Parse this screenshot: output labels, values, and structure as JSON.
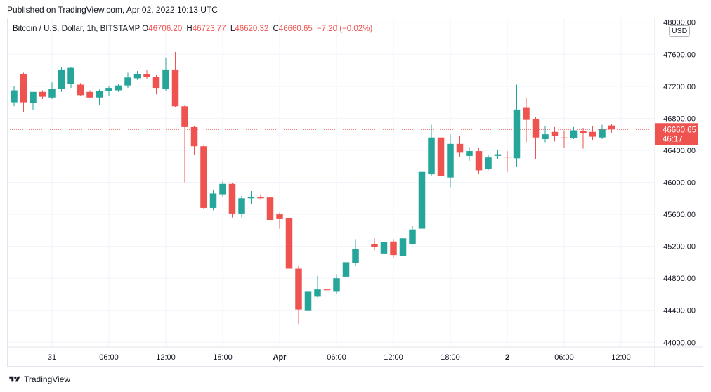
{
  "header": {
    "published": "Published on TradingView.com, Apr 02, 2022 10:13 UTC"
  },
  "legend": {
    "symbol": "Bitcoin / U.S. Dollar, 1h, BITSTAMP",
    "o_label": "O",
    "o_value": "46706.20",
    "h_label": "H",
    "h_value": "46723.77",
    "l_label": "L",
    "l_value": "46620.32",
    "c_label": "C",
    "c_value": "46660.65",
    "change": "−7.20 (−0.02%)"
  },
  "currency_badge": "USD",
  "footer": {
    "brand": "TradingView",
    "logo_icon": "tradingview-logo-icon"
  },
  "colors": {
    "up": "#26a69a",
    "down": "#ef5350",
    "grid": "#f0f3fa",
    "axis_text": "#131722"
  },
  "chart_data": {
    "type": "candlestick",
    "ylim": [
      43950,
      48050
    ],
    "yticks": [
      44000,
      44400,
      44800,
      45200,
      45600,
      46000,
      46400,
      46800,
      47200,
      47600,
      48000
    ],
    "ytick_labels": [
      "44000.00",
      "44400.00",
      "44800.00",
      "45200.00",
      "45600.00",
      "46000.00",
      "46400.00",
      "46800.00",
      "47200.00",
      "47600.00",
      "48000.00"
    ],
    "xticks": [
      {
        "label": "31",
        "index": 4,
        "bold": false
      },
      {
        "label": "06:00",
        "index": 10,
        "bold": false
      },
      {
        "label": "12:00",
        "index": 16,
        "bold": false
      },
      {
        "label": "18:00",
        "index": 22,
        "bold": false
      },
      {
        "label": "Apr",
        "index": 28,
        "bold": true
      },
      {
        "label": "06:00",
        "index": 34,
        "bold": false
      },
      {
        "label": "12:00",
        "index": 40,
        "bold": false
      },
      {
        "label": "18:00",
        "index": 46,
        "bold": false
      },
      {
        "label": "2",
        "index": 52,
        "bold": true
      },
      {
        "label": "06:00",
        "index": 58,
        "bold": false
      },
      {
        "label": "12:00",
        "index": 64,
        "bold": false
      }
    ],
    "last_price": {
      "value": 46660.65,
      "label": "46660.65",
      "countdown": "46:17"
    },
    "candles": [
      {
        "o": 47000,
        "h": 47200,
        "l": 46950,
        "c": 47150
      },
      {
        "o": 47350,
        "h": 47370,
        "l": 46880,
        "c": 47000
      },
      {
        "o": 46990,
        "h": 47120,
        "l": 46900,
        "c": 47130
      },
      {
        "o": 47130,
        "h": 47150,
        "l": 47040,
        "c": 47070
      },
      {
        "o": 47060,
        "h": 47250,
        "l": 47040,
        "c": 47170
      },
      {
        "o": 47170,
        "h": 47440,
        "l": 47130,
        "c": 47410
      },
      {
        "o": 47230,
        "h": 47440,
        "l": 47180,
        "c": 47430
      },
      {
        "o": 47220,
        "h": 47240,
        "l": 47080,
        "c": 47090
      },
      {
        "o": 47130,
        "h": 47150,
        "l": 47050,
        "c": 47060
      },
      {
        "o": 47060,
        "h": 47160,
        "l": 46960,
        "c": 47140
      },
      {
        "o": 47140,
        "h": 47200,
        "l": 47080,
        "c": 47180
      },
      {
        "o": 47150,
        "h": 47230,
        "l": 47130,
        "c": 47210
      },
      {
        "o": 47210,
        "h": 47370,
        "l": 47180,
        "c": 47310
      },
      {
        "o": 47300,
        "h": 47390,
        "l": 47280,
        "c": 47350
      },
      {
        "o": 47350,
        "h": 47400,
        "l": 47290,
        "c": 47320
      },
      {
        "o": 47320,
        "h": 47340,
        "l": 47100,
        "c": 47180
      },
      {
        "o": 47170,
        "h": 47560,
        "l": 47140,
        "c": 47410
      },
      {
        "o": 47410,
        "h": 47630,
        "l": 46940,
        "c": 46950
      },
      {
        "o": 46950,
        "h": 46960,
        "l": 46000,
        "c": 46690
      },
      {
        "o": 46690,
        "h": 46700,
        "l": 46340,
        "c": 46450
      },
      {
        "o": 46450,
        "h": 46460,
        "l": 45670,
        "c": 45680
      },
      {
        "o": 45680,
        "h": 45900,
        "l": 45650,
        "c": 45860
      },
      {
        "o": 45850,
        "h": 46010,
        "l": 45820,
        "c": 45980
      },
      {
        "o": 45980,
        "h": 45990,
        "l": 45560,
        "c": 45610
      },
      {
        "o": 45610,
        "h": 45830,
        "l": 45560,
        "c": 45800
      },
      {
        "o": 45800,
        "h": 45890,
        "l": 45730,
        "c": 45820
      },
      {
        "o": 45820,
        "h": 45850,
        "l": 45790,
        "c": 45800
      },
      {
        "o": 45810,
        "h": 45840,
        "l": 45240,
        "c": 45530
      },
      {
        "o": 45600,
        "h": 45620,
        "l": 45420,
        "c": 45540
      },
      {
        "o": 45550,
        "h": 45570,
        "l": 44930,
        "c": 44920
      },
      {
        "o": 44920,
        "h": 44960,
        "l": 44230,
        "c": 44410
      },
      {
        "o": 44400,
        "h": 44650,
        "l": 44280,
        "c": 44640
      },
      {
        "o": 44570,
        "h": 44830,
        "l": 44560,
        "c": 44660
      },
      {
        "o": 44660,
        "h": 44730,
        "l": 44600,
        "c": 44650
      },
      {
        "o": 44640,
        "h": 44850,
        "l": 44600,
        "c": 44800
      },
      {
        "o": 44820,
        "h": 44990,
        "l": 44800,
        "c": 45000
      },
      {
        "o": 44990,
        "h": 45290,
        "l": 44950,
        "c": 45170
      },
      {
        "o": 45170,
        "h": 45300,
        "l": 45080,
        "c": 45170
      },
      {
        "o": 45230,
        "h": 45300,
        "l": 45150,
        "c": 45190
      },
      {
        "o": 45110,
        "h": 45290,
        "l": 45090,
        "c": 45250
      },
      {
        "o": 45260,
        "h": 45290,
        "l": 45060,
        "c": 45090
      },
      {
        "o": 45080,
        "h": 45330,
        "l": 44730,
        "c": 45300
      },
      {
        "o": 45230,
        "h": 45460,
        "l": 45220,
        "c": 45410
      },
      {
        "o": 45420,
        "h": 46180,
        "l": 45400,
        "c": 46130
      },
      {
        "o": 46100,
        "h": 46720,
        "l": 46080,
        "c": 46560
      },
      {
        "o": 46560,
        "h": 46620,
        "l": 46060,
        "c": 46080
      },
      {
        "o": 46060,
        "h": 46600,
        "l": 45940,
        "c": 46480
      },
      {
        "o": 46480,
        "h": 46580,
        "l": 46320,
        "c": 46370
      },
      {
        "o": 46330,
        "h": 46440,
        "l": 46270,
        "c": 46390
      },
      {
        "o": 46390,
        "h": 46430,
        "l": 46100,
        "c": 46150
      },
      {
        "o": 46170,
        "h": 46340,
        "l": 46150,
        "c": 46310
      },
      {
        "o": 46330,
        "h": 46400,
        "l": 46290,
        "c": 46350
      },
      {
        "o": 46320,
        "h": 46390,
        "l": 46130,
        "c": 46310
      },
      {
        "o": 46300,
        "h": 47220,
        "l": 46190,
        "c": 46910
      },
      {
        "o": 46930,
        "h": 47060,
        "l": 46500,
        "c": 46780
      },
      {
        "o": 46790,
        "h": 46820,
        "l": 46290,
        "c": 46560
      },
      {
        "o": 46540,
        "h": 46700,
        "l": 46500,
        "c": 46600
      },
      {
        "o": 46630,
        "h": 46690,
        "l": 46510,
        "c": 46580
      },
      {
        "o": 46560,
        "h": 46650,
        "l": 46430,
        "c": 46550
      },
      {
        "o": 46550,
        "h": 46690,
        "l": 46540,
        "c": 46650
      },
      {
        "o": 46640,
        "h": 46680,
        "l": 46420,
        "c": 46610
      },
      {
        "o": 46630,
        "h": 46700,
        "l": 46530,
        "c": 46570
      },
      {
        "o": 46560,
        "h": 46720,
        "l": 46540,
        "c": 46670
      },
      {
        "o": 46710,
        "h": 46724,
        "l": 46620,
        "c": 46660
      }
    ]
  }
}
